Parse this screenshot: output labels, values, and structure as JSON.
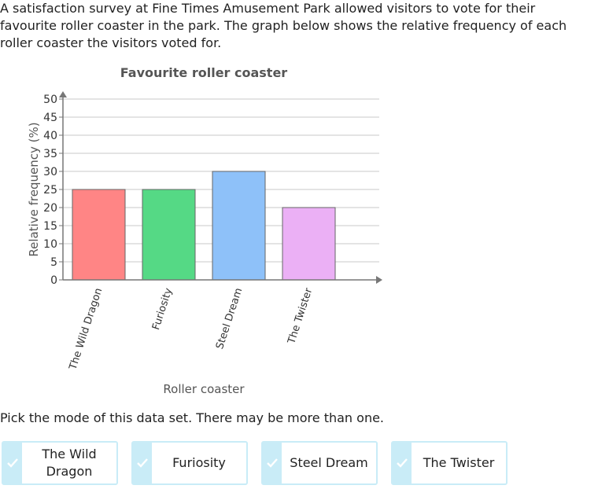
{
  "intro": "A satisfaction survey at Fine Times Amusement Park allowed visitors to vote for their favourite roller coaster in the park. The graph below shows the relative frequency of each roller coaster the visitors voted for.",
  "question": "Pick the mode of this data set. There may be more than one.",
  "choices": [
    {
      "label": "The Wild Dragon"
    },
    {
      "label": "Furiosity"
    },
    {
      "label": "Steel Dream"
    },
    {
      "label": "The Twister"
    }
  ],
  "colors": {
    "choice_border": "#c9ecf7",
    "check_bg": "#c9ecf7",
    "check_mark": "#ffffff"
  },
  "chart_data": {
    "type": "bar",
    "title": "Favourite roller coaster",
    "xlabel": "Roller coaster",
    "ylabel": "Relative frequency (%)",
    "categories": [
      "The Wild Dragon",
      "Furiosity",
      "Steel Dream",
      "The Twister"
    ],
    "values": [
      25,
      25,
      30,
      20
    ],
    "colors": [
      "#ff8585",
      "#55d985",
      "#8ec1f9",
      "#ebb0f5"
    ],
    "ylim": [
      0,
      50
    ],
    "yticks": [
      0,
      5,
      10,
      15,
      20,
      25,
      30,
      35,
      40,
      45,
      50
    ],
    "grid": true
  }
}
